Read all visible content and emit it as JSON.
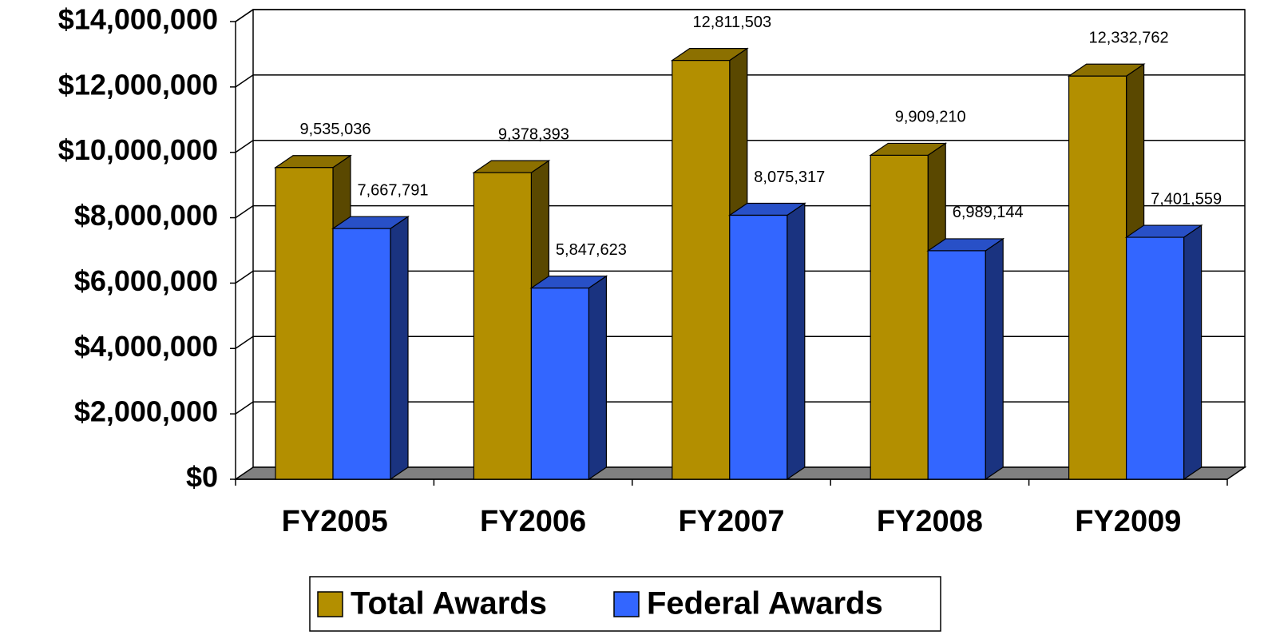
{
  "chart_data": {
    "type": "bar3d",
    "categories": [
      "FY2005",
      "FY2006",
      "FY2007",
      "FY2008",
      "FY2009"
    ],
    "series": [
      {
        "name": "Total Awards",
        "color": "#b38f00",
        "values": [
          9535036,
          9378393,
          12811503,
          9909210,
          12332762
        ],
        "value_labels": [
          "9,535,036",
          "9,378,393",
          "12,811,503",
          "9,909,210",
          "12,332,762"
        ]
      },
      {
        "name": "Federal Awards",
        "color": "#3366ff",
        "values": [
          7667791,
          5847623,
          8075317,
          6989144,
          7401559
        ],
        "value_labels": [
          "7,667,791",
          "5,847,623",
          "8,075,317",
          "6,989,144",
          "7,401,559"
        ]
      }
    ],
    "ylim": [
      0,
      14000000
    ],
    "yticks": [
      {
        "value": 0,
        "label": "$0"
      },
      {
        "value": 2000000,
        "label": "$2,000,000"
      },
      {
        "value": 4000000,
        "label": "$4,000,000"
      },
      {
        "value": 6000000,
        "label": "$6,000,000"
      },
      {
        "value": 8000000,
        "label": "$8,000,000"
      },
      {
        "value": 10000000,
        "label": "$10,000,000"
      },
      {
        "value": 12000000,
        "label": "$12,000,000"
      },
      {
        "value": 14000000,
        "label": "$14,000,000"
      }
    ],
    "grid": true,
    "legend": "bottom"
  }
}
